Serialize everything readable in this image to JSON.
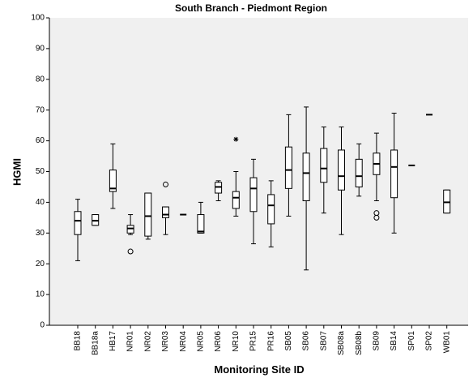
{
  "chart_data": {
    "type": "box",
    "title": "South Branch - Piedmont Region",
    "x_label": "Monitoring Site ID",
    "y_label": "HGMI",
    "categories": [
      "BB18",
      "BB18a",
      "HB17",
      "NR01",
      "NR02",
      "NR03",
      "NR04",
      "NR05",
      "NR06",
      "NR10",
      "PR15",
      "PR16",
      "SB05",
      "SB06",
      "SB07",
      "SB08a",
      "SB08b",
      "SB09",
      "SB14",
      "SP01",
      "SP02",
      "WB01"
    ],
    "min": [
      21,
      32.5,
      38,
      29.5,
      28,
      29.5,
      36,
      30,
      40.5,
      35.5,
      26.5,
      25.5,
      35.5,
      18,
      36.5,
      29.5,
      42,
      40.5,
      30,
      52,
      68.5,
      36.5
    ],
    "q1": [
      29.5,
      32.5,
      43.5,
      30,
      29,
      35,
      36,
      30,
      43,
      38,
      37,
      33,
      44.5,
      40.5,
      46.5,
      44,
      45,
      49,
      41.5,
      52,
      68.5,
      36.5
    ],
    "median": [
      34,
      34,
      44.5,
      31.5,
      35.5,
      36,
      36,
      30.5,
      45,
      41.5,
      44.5,
      39,
      50.5,
      49.5,
      51,
      48.5,
      48.5,
      52.5,
      51.5,
      52,
      68.5,
      40
    ],
    "q3": [
      37,
      36,
      50.5,
      32.5,
      43,
      38.5,
      36,
      36,
      46.5,
      43.5,
      48,
      42.5,
      58,
      56,
      57.5,
      57,
      54,
      56,
      57,
      52,
      68.5,
      44
    ],
    "max": [
      41,
      36,
      59,
      36,
      43,
      38.5,
      36,
      40,
      47,
      50,
      54,
      47,
      68.5,
      71,
      64.5,
      64.5,
      59,
      62.5,
      69,
      52,
      68.5,
      44
    ],
    "outliers": [
      [],
      [],
      [],
      [
        24
      ],
      [],
      [
        45.8
      ],
      [],
      [],
      [],
      [],
      [],
      [],
      [],
      [],
      [],
      [],
      [],
      [
        36.5,
        35
      ],
      [],
      [],
      [],
      []
    ],
    "extremes": [
      [],
      [],
      [],
      [],
      [],
      [],
      [],
      [],
      [],
      [
        60.5
      ],
      [],
      [],
      [],
      [],
      [],
      [],
      [],
      [],
      [],
      [],
      [],
      []
    ],
    "ylim": [
      0,
      100
    ],
    "yticks": [
      0,
      10,
      20,
      30,
      40,
      50,
      60,
      70,
      80,
      90,
      100
    ],
    "background": "#f0f0f0",
    "box_fill": "#ffffff",
    "line_color": "#000000"
  }
}
